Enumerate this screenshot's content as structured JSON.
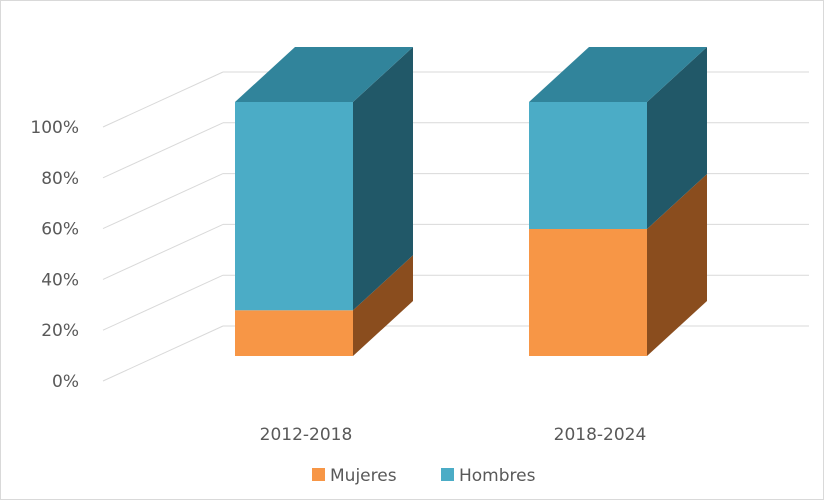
{
  "chart_data": {
    "type": "bar",
    "stacked": true,
    "three_d": true,
    "categories": [
      "2012-2018",
      "2018-2024"
    ],
    "series": [
      {
        "name": "Mujeres",
        "values": [
          18,
          50
        ],
        "color": "#f79646",
        "side_color": "#8a4d1e"
      },
      {
        "name": "Hombres",
        "values": [
          82,
          50
        ],
        "color": "#4bacc6",
        "side_color": "#215868",
        "top_color": "#31849b"
      }
    ],
    "ylim": [
      0,
      100
    ],
    "yticks": [
      "0%",
      "20%",
      "40%",
      "60%",
      "80%",
      "100%"
    ],
    "grid": true,
    "legend_position": "bottom"
  }
}
